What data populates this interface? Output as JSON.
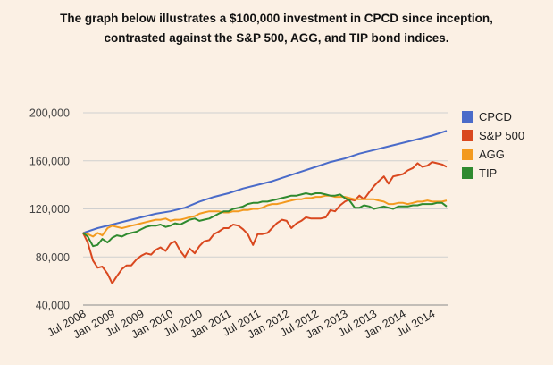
{
  "header": {
    "line1": "The graph below illustrates a $100,000 investment in CPCD since inception,",
    "line2": "contrasted against the S&P 500, AGG, and TIP bond indices."
  },
  "chart_data": {
    "type": "line",
    "title": "",
    "xlabel": "",
    "ylabel": "",
    "ylim": [
      40000,
      200000
    ],
    "yticks": [
      40000,
      80000,
      120000,
      160000,
      200000
    ],
    "ytick_labels": [
      "40,000",
      "80,000",
      "120,000",
      "160,000",
      "200,000"
    ],
    "xlim": [
      2008.5,
      2014.75
    ],
    "xticks": [
      2008.5,
      2009.0,
      2009.5,
      2010.0,
      2010.5,
      2011.0,
      2011.5,
      2012.0,
      2012.5,
      2013.0,
      2013.5,
      2014.0,
      2014.5
    ],
    "xtick_labels": [
      "Jul 2008",
      "Jan 2009",
      "Jul 2009",
      "Jan 2010",
      "Jul 2010",
      "Jan 2011",
      "Jul 2011",
      "Jan 2012",
      "Jul 2012",
      "Jan 2013",
      "Jul 2013",
      "Jan 2014",
      "Jul 2014"
    ],
    "grid": true,
    "legend_position": "right",
    "series": [
      {
        "name": "CPCD",
        "color": "#4a6bc9",
        "x": [
          2008.5,
          2008.75,
          2009.0,
          2009.25,
          2009.5,
          2009.75,
          2010.0,
          2010.25,
          2010.5,
          2010.75,
          2011.0,
          2011.25,
          2011.5,
          2011.75,
          2012.0,
          2012.25,
          2012.5,
          2012.75,
          2013.0,
          2013.25,
          2013.5,
          2013.75,
          2014.0,
          2014.25,
          2014.5,
          2014.75
        ],
        "values": [
          100000,
          104000,
          107000,
          110000,
          113000,
          116000,
          118000,
          121000,
          126000,
          130000,
          133000,
          137000,
          140000,
          143000,
          147000,
          151000,
          155000,
          159000,
          162000,
          166000,
          169000,
          172000,
          175000,
          178000,
          181000,
          185000
        ]
      },
      {
        "name": "S&P 500",
        "color": "#d9481f",
        "x": [
          2008.5,
          2008.58,
          2008.67,
          2008.75,
          2008.83,
          2008.92,
          2009.0,
          2009.08,
          2009.17,
          2009.25,
          2009.33,
          2009.42,
          2009.5,
          2009.58,
          2009.67,
          2009.75,
          2009.83,
          2009.92,
          2010.0,
          2010.08,
          2010.17,
          2010.25,
          2010.33,
          2010.42,
          2010.5,
          2010.58,
          2010.67,
          2010.75,
          2010.83,
          2010.92,
          2011.0,
          2011.08,
          2011.17,
          2011.25,
          2011.33,
          2011.42,
          2011.5,
          2011.58,
          2011.67,
          2011.75,
          2011.83,
          2011.92,
          2012.0,
          2012.08,
          2012.17,
          2012.25,
          2012.33,
          2012.42,
          2012.5,
          2012.58,
          2012.67,
          2012.75,
          2012.83,
          2012.92,
          2013.0,
          2013.08,
          2013.17,
          2013.25,
          2013.33,
          2013.42,
          2013.5,
          2013.58,
          2013.67,
          2013.75,
          2013.83,
          2013.92,
          2014.0,
          2014.08,
          2014.17,
          2014.25,
          2014.33,
          2014.42,
          2014.5,
          2014.58,
          2014.67,
          2014.75
        ],
        "values": [
          100000,
          92000,
          77000,
          71000,
          72000,
          66000,
          58000,
          64000,
          70000,
          73000,
          73000,
          78000,
          81000,
          83000,
          82000,
          86000,
          88000,
          85000,
          91000,
          93000,
          85000,
          80000,
          87000,
          83000,
          89000,
          93000,
          94000,
          99000,
          101000,
          104000,
          104000,
          107000,
          106000,
          103000,
          99000,
          90000,
          99000,
          99000,
          100000,
          104000,
          108000,
          111000,
          110000,
          104000,
          108000,
          110000,
          113000,
          112000,
          112000,
          112000,
          113000,
          119000,
          118000,
          123000,
          126000,
          128000,
          127000,
          131000,
          128000,
          134000,
          139000,
          143000,
          147000,
          141000,
          147000,
          148000,
          149000,
          152000,
          154000,
          158000,
          155000,
          156000,
          159000,
          158000,
          157000,
          155000
        ]
      },
      {
        "name": "AGG",
        "color": "#f39a1f",
        "x": [
          2008.5,
          2008.58,
          2008.67,
          2008.75,
          2008.83,
          2008.92,
          2009.0,
          2009.08,
          2009.17,
          2009.25,
          2009.33,
          2009.42,
          2009.5,
          2009.58,
          2009.67,
          2009.75,
          2009.83,
          2009.92,
          2010.0,
          2010.08,
          2010.17,
          2010.25,
          2010.33,
          2010.42,
          2010.5,
          2010.58,
          2010.67,
          2010.75,
          2010.83,
          2010.92,
          2011.0,
          2011.08,
          2011.17,
          2011.25,
          2011.33,
          2011.42,
          2011.5,
          2011.58,
          2011.67,
          2011.75,
          2011.83,
          2011.92,
          2012.0,
          2012.08,
          2012.17,
          2012.25,
          2012.33,
          2012.42,
          2012.5,
          2012.58,
          2012.67,
          2012.75,
          2012.83,
          2012.92,
          2013.0,
          2013.08,
          2013.17,
          2013.25,
          2013.33,
          2013.42,
          2013.5,
          2013.58,
          2013.67,
          2013.75,
          2013.83,
          2013.92,
          2014.0,
          2014.08,
          2014.17,
          2014.25,
          2014.33,
          2014.42,
          2014.5,
          2014.58,
          2014.67,
          2014.75
        ],
        "values": [
          100000,
          99000,
          97000,
          100000,
          98000,
          104000,
          106000,
          105000,
          104000,
          105000,
          106000,
          107000,
          108000,
          109000,
          110000,
          111000,
          111000,
          112000,
          110000,
          111000,
          111000,
          112000,
          113000,
          114000,
          116000,
          117000,
          118000,
          118000,
          118000,
          117000,
          117000,
          118000,
          118000,
          119000,
          119000,
          120000,
          120000,
          121000,
          123000,
          124000,
          124000,
          125000,
          126000,
          127000,
          128000,
          128000,
          129000,
          129000,
          130000,
          130000,
          131000,
          131000,
          130000,
          130000,
          130000,
          129000,
          128000,
          128000,
          128000,
          128000,
          128000,
          127000,
          126000,
          124000,
          124000,
          125000,
          125000,
          124000,
          125000,
          126000,
          126000,
          127000,
          126000,
          126000,
          126000,
          127000
        ]
      },
      {
        "name": "TIP",
        "color": "#2f8a2f",
        "x": [
          2008.5,
          2008.58,
          2008.67,
          2008.75,
          2008.83,
          2008.92,
          2009.0,
          2009.08,
          2009.17,
          2009.25,
          2009.33,
          2009.42,
          2009.5,
          2009.58,
          2009.67,
          2009.75,
          2009.83,
          2009.92,
          2010.0,
          2010.08,
          2010.17,
          2010.25,
          2010.33,
          2010.42,
          2010.5,
          2010.58,
          2010.67,
          2010.75,
          2010.83,
          2010.92,
          2011.0,
          2011.08,
          2011.17,
          2011.25,
          2011.33,
          2011.42,
          2011.5,
          2011.58,
          2011.67,
          2011.75,
          2011.83,
          2011.92,
          2012.0,
          2012.08,
          2012.17,
          2012.25,
          2012.33,
          2012.42,
          2012.5,
          2012.58,
          2012.67,
          2012.75,
          2012.83,
          2012.92,
          2013.0,
          2013.08,
          2013.17,
          2013.25,
          2013.33,
          2013.42,
          2013.5,
          2013.58,
          2013.67,
          2013.75,
          2013.83,
          2013.92,
          2014.0,
          2014.08,
          2014.17,
          2014.25,
          2014.33,
          2014.42,
          2014.5,
          2014.58,
          2014.67,
          2014.75
        ],
        "values": [
          100000,
          97000,
          89000,
          90000,
          95000,
          92000,
          96000,
          98000,
          97000,
          99000,
          100000,
          101000,
          103000,
          105000,
          106000,
          106000,
          107000,
          105000,
          106000,
          108000,
          107000,
          109000,
          111000,
          112000,
          110000,
          111000,
          112000,
          114000,
          116000,
          118000,
          118000,
          120000,
          121000,
          122000,
          124000,
          125000,
          125000,
          126000,
          126000,
          127000,
          128000,
          129000,
          130000,
          131000,
          131000,
          132000,
          133000,
          132000,
          133000,
          133000,
          132000,
          131000,
          131000,
          132000,
          129000,
          127000,
          121000,
          121000,
          123000,
          122000,
          120000,
          121000,
          122000,
          121000,
          120000,
          122000,
          122000,
          122000,
          123000,
          123000,
          124000,
          124000,
          124000,
          125000,
          125000,
          122000
        ]
      }
    ]
  }
}
